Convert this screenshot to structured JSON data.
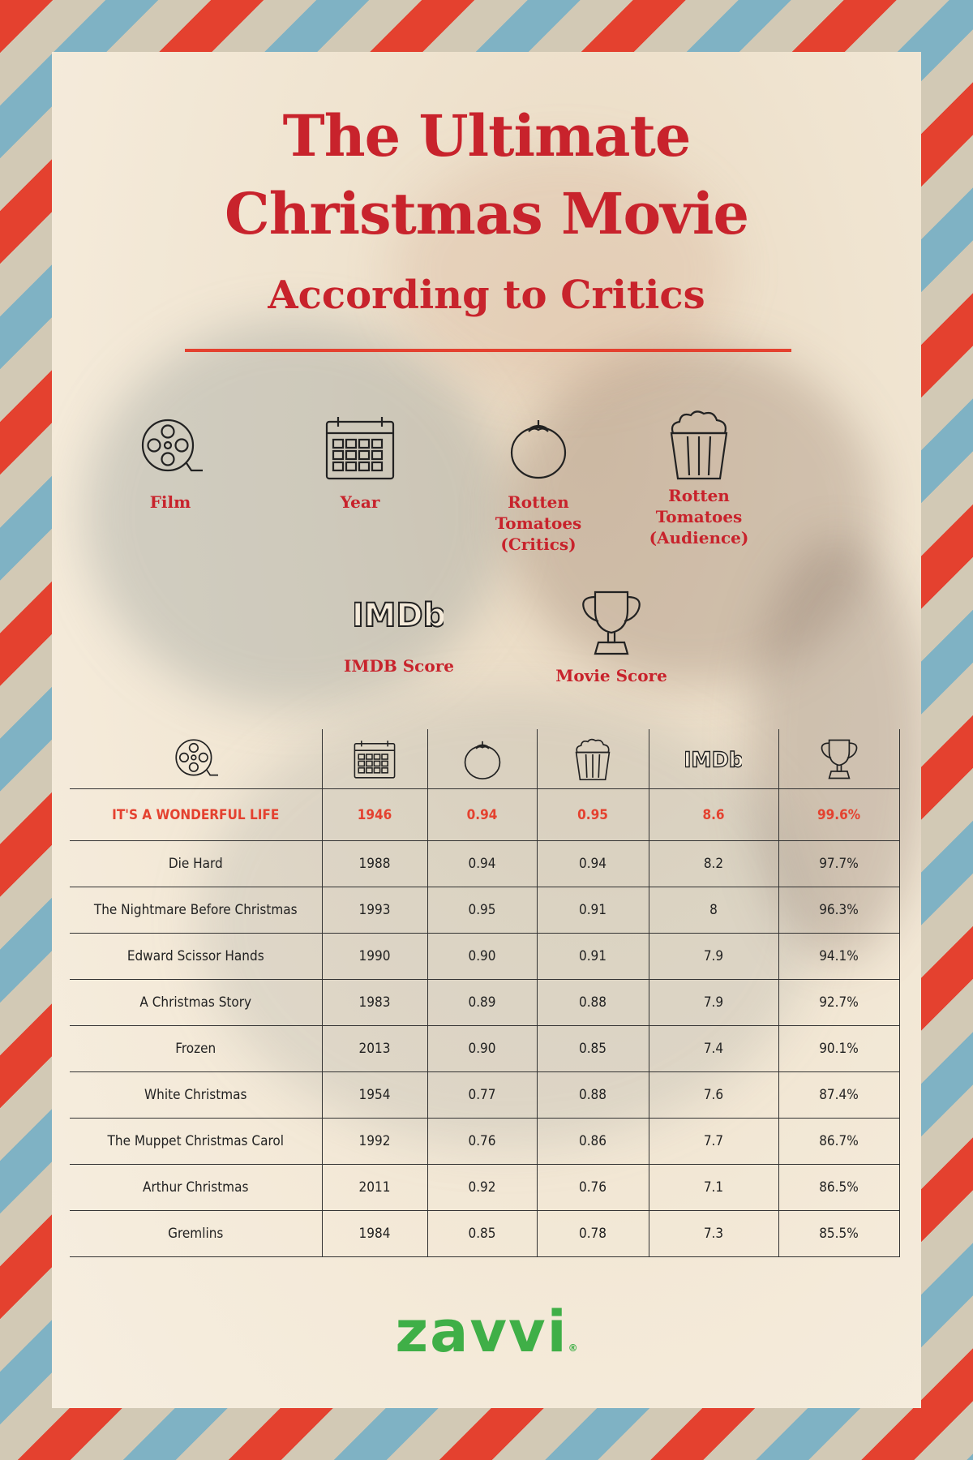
{
  "title": {
    "line1": "The Ultimate",
    "line2": "Christmas Movie",
    "line3": "According to Critics"
  },
  "key": [
    {
      "label": "Film",
      "icon": "film-reel-icon"
    },
    {
      "label": "Year",
      "icon": "calendar-icon"
    },
    {
      "label": "Rotten\nTomatoes\n(Critics)",
      "icon": "tomato-icon"
    },
    {
      "label": "Rotten\nTomatoes\n(Audience)",
      "icon": "popcorn-icon"
    },
    {
      "label": "IMDB Score",
      "icon": "imdb-icon"
    },
    {
      "label": "Movie Score",
      "icon": "trophy-icon"
    }
  ],
  "imdb_logo_text": "IMDb",
  "logo": {
    "text": "zavvi",
    "mark": "®"
  },
  "colors": {
    "title": "#c8232c",
    "accent": "#e4412f",
    "logo": "#3faf47",
    "text": "#222222"
  },
  "chart_data": {
    "type": "table",
    "columns": [
      "Film",
      "Year",
      "Rotten Tomatoes (Critics)",
      "Rotten Tomatoes (Audience)",
      "IMDB Score",
      "Movie Score"
    ],
    "rows": [
      {
        "film": "IT'S A WONDERFUL LIFE",
        "year": "1946",
        "rt_critics": "0.94",
        "rt_audience": "0.95",
        "imdb": "8.6",
        "score": "99.6%",
        "highlight": true
      },
      {
        "film": "Die Hard",
        "year": "1988",
        "rt_critics": "0.94",
        "rt_audience": "0.94",
        "imdb": "8.2",
        "score": "97.7%"
      },
      {
        "film": "The Nightmare Before Christmas",
        "year": "1993",
        "rt_critics": "0.95",
        "rt_audience": "0.91",
        "imdb": "8",
        "score": "96.3%"
      },
      {
        "film": "Edward Scissor Hands",
        "year": "1990",
        "rt_critics": "0.90",
        "rt_audience": "0.91",
        "imdb": "7.9",
        "score": "94.1%"
      },
      {
        "film": "A Christmas Story",
        "year": "1983",
        "rt_critics": "0.89",
        "rt_audience": "0.88",
        "imdb": "7.9",
        "score": "92.7%"
      },
      {
        "film": "Frozen",
        "year": "2013",
        "rt_critics": "0.90",
        "rt_audience": "0.85",
        "imdb": "7.4",
        "score": "90.1%"
      },
      {
        "film": "White Christmas",
        "year": "1954",
        "rt_critics": "0.77",
        "rt_audience": "0.88",
        "imdb": "7.6",
        "score": "87.4%"
      },
      {
        "film": "The Muppet Christmas Carol",
        "year": "1992",
        "rt_critics": "0.76",
        "rt_audience": "0.86",
        "imdb": "7.7",
        "score": "86.7%"
      },
      {
        "film": "Arthur Christmas",
        "year": "2011",
        "rt_critics": "0.92",
        "rt_audience": "0.76",
        "imdb": "7.1",
        "score": "86.5%"
      },
      {
        "film": "Gremlins",
        "year": "1984",
        "rt_critics": "0.85",
        "rt_audience": "0.78",
        "imdb": "7.3",
        "score": "85.5%"
      }
    ]
  }
}
